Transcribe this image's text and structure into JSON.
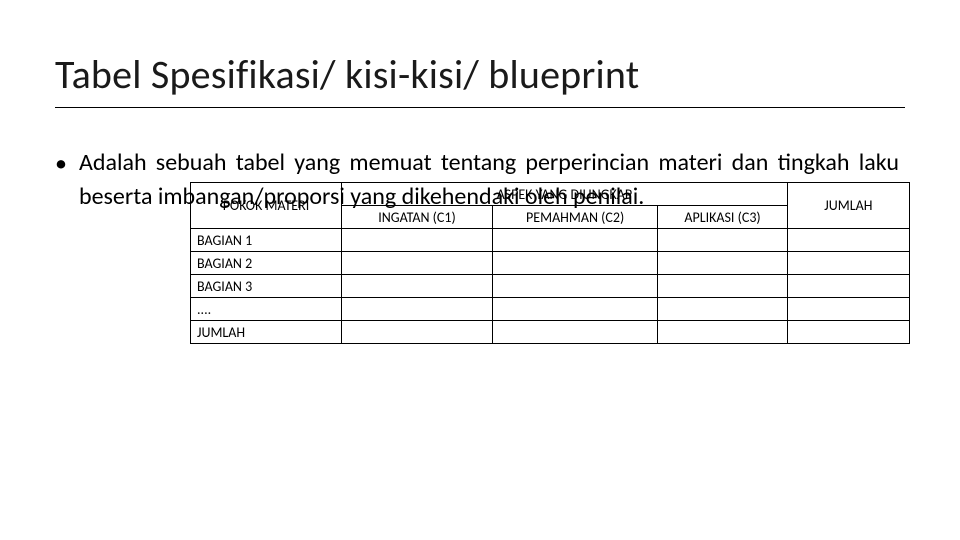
{
  "title": "Tabel Spesifikasi/ kisi-kisi/ blueprint",
  "bullet_char": "•",
  "body": "Adalah sebuah tabel yang memuat tentang perperincian materi dan tingkah laku beserta imbangan/proporsi yang dikehendaki oleh penilai.",
  "table": {
    "type": "table",
    "header_main": "POKOK MATERI",
    "header_group": "ASPEK YANG DIUNGKAP",
    "header_c1": "INGATAN (C1)",
    "header_c2": "PEMAHMAN (C2)",
    "header_c3": "APLIKASI (C3)",
    "header_jumlah": "JUMLAH",
    "rows": [
      {
        "label": "BAGIAN 1",
        "c1": "",
        "c2": "",
        "c3": "",
        "jumlah": ""
      },
      {
        "label": "BAGIAN 2",
        "c1": "",
        "c2": "",
        "c3": "",
        "jumlah": ""
      },
      {
        "label": "BAGIAN 3",
        "c1": "",
        "c2": "",
        "c3": "",
        "jumlah": ""
      },
      {
        "label": "....",
        "c1": "",
        "c2": "",
        "c3": "",
        "jumlah": ""
      },
      {
        "label": "JUMLAH",
        "c1": "",
        "c2": "",
        "c3": "",
        "jumlah": ""
      }
    ],
    "border_color": "#000000",
    "background_color": "#ffffff",
    "font_size_pt": 10,
    "col_widths_pct": [
      21,
      21,
      23,
      18,
      17
    ]
  },
  "colors": {
    "text": "#000000",
    "background": "#ffffff",
    "underline": "#000000"
  },
  "fonts": {
    "title_size_pt": 30,
    "body_size_pt": 18,
    "family": "Calibri"
  }
}
